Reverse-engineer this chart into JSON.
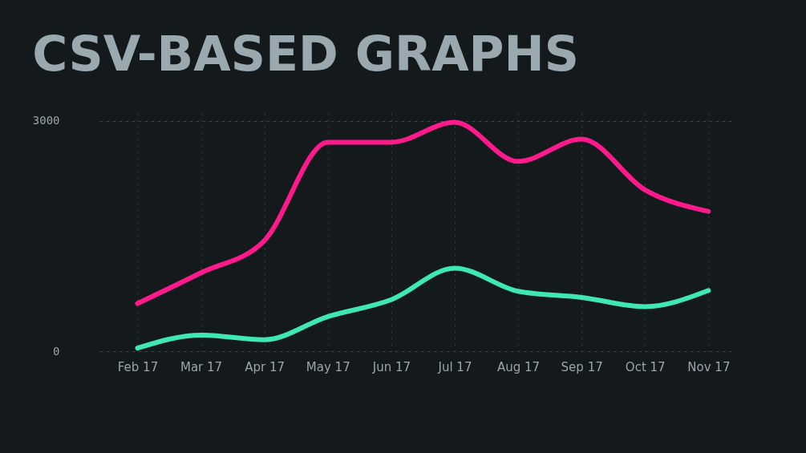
{
  "chart_data": {
    "type": "line",
    "title": "CSV-BASED GRAPHS",
    "categories": [
      "Feb 17",
      "Mar 17",
      "Apr 17",
      "May 17",
      "Jun 17",
      "Jul 17",
      "Aug 17",
      "Sep 17",
      "Oct 17",
      "Nov 17"
    ],
    "series": [
      {
        "color": "#ff1a8c",
        "values": [
          620,
          1020,
          1440,
          2720,
          2720,
          2980,
          2470,
          2760,
          2100,
          1820
        ]
      },
      {
        "color": "#3ee8b0",
        "values": [
          40,
          210,
          150,
          450,
          670,
          1080,
          780,
          700,
          580,
          790
        ]
      }
    ],
    "ylim": [
      0,
      3100
    ],
    "yticks": [
      0,
      3000
    ],
    "grid": true,
    "legend": false,
    "marker": "none",
    "line_style": "solid"
  }
}
